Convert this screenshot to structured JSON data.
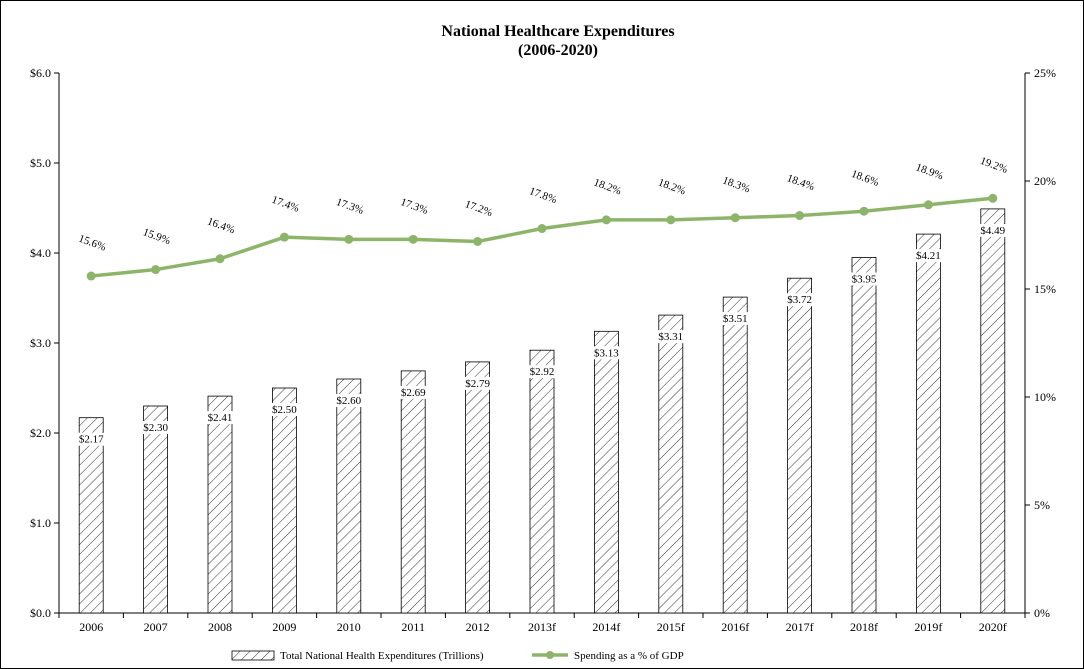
{
  "chart_data": {
    "type": "bar",
    "title": "National Healthcare Expenditures",
    "subtitle": "(2006-2020)",
    "categories": [
      "2006",
      "2007",
      "2008",
      "2009",
      "2010",
      "2011",
      "2012",
      "2013f",
      "2014f",
      "2015f",
      "2016f",
      "2017f",
      "2018f",
      "2019f",
      "2020f"
    ],
    "series": [
      {
        "name": "Total National Health Expenditures (Trillions)",
        "type": "bar",
        "axis": "left",
        "values": [
          2.17,
          2.3,
          2.41,
          2.5,
          2.6,
          2.69,
          2.79,
          2.92,
          3.13,
          3.31,
          3.51,
          3.72,
          3.95,
          4.21,
          4.49
        ],
        "labels": [
          "$2.17",
          "$2.30",
          "$2.41",
          "$2.50",
          "$2.60",
          "$2.69",
          "$2.79",
          "$2.92",
          "$3.13",
          "$3.31",
          "$3.51",
          "$3.72",
          "$3.95",
          "$4.21",
          "$4.49"
        ],
        "pattern": "diagonal-hatch"
      },
      {
        "name": "Spending as a % of GDP",
        "type": "line",
        "axis": "right",
        "values": [
          15.6,
          15.9,
          16.4,
          17.4,
          17.3,
          17.3,
          17.2,
          17.8,
          18.2,
          18.2,
          18.3,
          18.4,
          18.6,
          18.9,
          19.2
        ],
        "labels": [
          "15.6%",
          "15.9%",
          "16.4%",
          "17.4%",
          "17.3%",
          "17.3%",
          "17.2%",
          "17.8%",
          "18.2%",
          "18.2%",
          "18.3%",
          "18.4%",
          "18.6%",
          "18.9%",
          "19.2%"
        ],
        "color": "#8db56a"
      }
    ],
    "left_axis": {
      "ylim": [
        0,
        6
      ],
      "ticks": [
        "$0.0",
        "$1.0",
        "$2.0",
        "$3.0",
        "$4.0",
        "$5.0",
        "$6.0"
      ]
    },
    "right_axis": {
      "ylim": [
        0,
        25
      ],
      "ticks": [
        "0%",
        "5%",
        "10%",
        "15%",
        "20%",
        "25%"
      ]
    },
    "legend_position": "bottom",
    "grid": false
  }
}
